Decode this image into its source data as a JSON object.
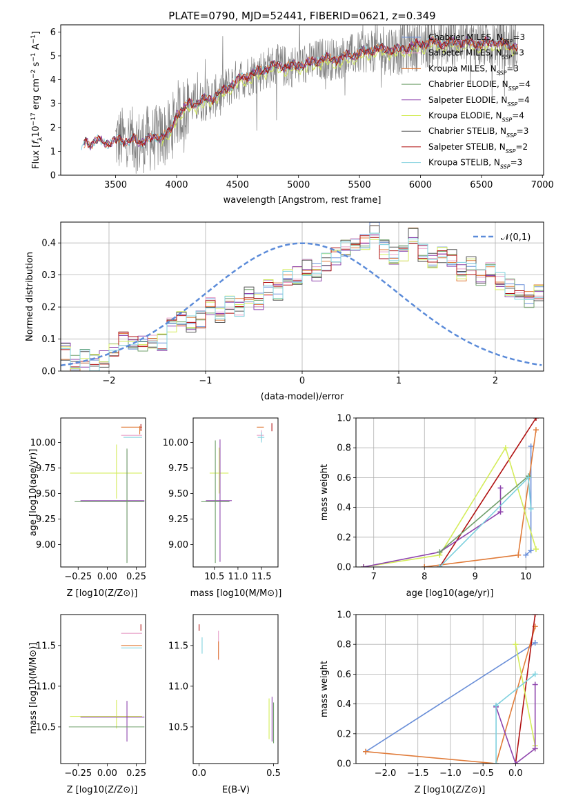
{
  "title": "PLATE=0790, MJD=52441, FIBERID=0621, z=0.349",
  "colors": {
    "chabrier_miles": "#6a8fd8",
    "salpeter_miles": "#e8a0c8",
    "kroupa_miles": "#e07b39",
    "chabrier_elodie": "#6f9f6a",
    "salpeter_elodie": "#8e44ad",
    "kroupa_elodie": "#d4ec5a",
    "chabrier_stelib": "#555555",
    "salpeter_stelib": "#b01010",
    "kroupa_stelib": "#7fd1de",
    "data": "#808080",
    "gaussian": "#5b8bd9"
  },
  "chart_data": [
    {
      "id": "spectrum",
      "type": "line",
      "title": "PLATE=0790, MJD=52441, FIBERID=0621, z=0.349",
      "xlabel": "wavelength [Angstrom, rest frame]",
      "ylabel": "Flux [f_λ10^-17 erg cm^-2 s^-1 A^-1]",
      "xlim": [
        3050,
        7010
      ],
      "ylim": [
        0,
        6.3
      ],
      "xticks": [
        3500,
        4000,
        4500,
        5000,
        5500,
        6000,
        6500,
        7000
      ],
      "yticks": [
        0,
        1,
        2,
        3,
        4,
        5,
        6
      ],
      "legend_position": "upper right",
      "legend": [
        {
          "label": "Chabrier MILES, N",
          "sub": "SSP",
          "tail": "=3",
          "color_key": "chabrier_miles"
        },
        {
          "label": "Salpeter MILES, N",
          "sub": "SSP",
          "tail": "=3",
          "color_key": "salpeter_miles"
        },
        {
          "label": "Kroupa MILES, N",
          "sub": "SSP",
          "tail": "=3",
          "color_key": "kroupa_miles"
        },
        {
          "label": "Chabrier ELODIE, N",
          "sub": "SSP",
          "tail": "=4",
          "color_key": "chabrier_elodie"
        },
        {
          "label": "Salpeter ELODIE, N",
          "sub": "SSP",
          "tail": "=4",
          "color_key": "salpeter_elodie"
        },
        {
          "label": "Kroupa ELODIE, N",
          "sub": "SSP",
          "tail": "=4",
          "color_key": "kroupa_elodie"
        },
        {
          "label": "Chabrier STELIB, N",
          "sub": "SSP",
          "tail": "=3",
          "color_key": "chabrier_stelib"
        },
        {
          "label": "Salpeter STELIB, N",
          "sub": "SSP",
          "tail": "=2",
          "color_key": "salpeter_stelib"
        },
        {
          "label": "Kroupa STELIB, N",
          "sub": "SSP",
          "tail": "=3",
          "color_key": "kroupa_stelib"
        }
      ],
      "model_continuum": {
        "x": [
          3220,
          3260,
          3300,
          3350,
          3400,
          3450,
          3500,
          3550,
          3600,
          3650,
          3700,
          3750,
          3800,
          3850,
          3900,
          3950,
          4000,
          4050,
          4100,
          4150,
          4200,
          4300,
          4400,
          4500,
          4600,
          4700,
          4800,
          4900,
          5000,
          5100,
          5200,
          5300,
          5400,
          5500,
          5600,
          5700,
          5800,
          5900,
          6000,
          6100,
          6200,
          6300,
          6400,
          6500,
          6600,
          6700,
          6800
        ],
        "y": [
          1.0,
          1.5,
          1.3,
          1.45,
          1.4,
          1.35,
          1.45,
          1.5,
          1.4,
          1.5,
          1.35,
          1.55,
          1.5,
          1.6,
          1.7,
          1.8,
          2.6,
          2.7,
          3.0,
          3.0,
          3.1,
          3.25,
          3.6,
          4.0,
          4.2,
          4.4,
          4.6,
          4.55,
          4.6,
          4.7,
          4.9,
          4.85,
          5.0,
          5.1,
          5.25,
          5.3,
          5.25,
          5.35,
          5.5,
          5.6,
          5.5,
          5.6,
          5.55,
          5.5,
          5.6,
          5.5,
          5.4
        ]
      },
      "data_x_range": [
        3500,
        6800
      ]
    },
    {
      "id": "residuals",
      "type": "histogram",
      "xlabel": "(data-model)/error",
      "ylabel": "Normed distribution",
      "xlim": [
        -2.5,
        2.5
      ],
      "ylim": [
        0,
        0.465
      ],
      "xticks": [
        -2,
        -1,
        0,
        1,
        2
      ],
      "xticklabels": [
        "−2",
        "−1",
        "0",
        "1",
        "2"
      ],
      "yticks": [
        0,
        0.1,
        0.2,
        0.3,
        0.4
      ],
      "yticklabels": [
        "0.0",
        "0.1",
        "0.2",
        "0.3",
        "0.4"
      ],
      "legend": [
        {
          "label": "𝒩(0,1)",
          "color_key": "gaussian",
          "style": "dashed"
        }
      ],
      "legend_position": "upper right",
      "bin_width": 0.1,
      "bins_start": -2.5,
      "series_values": [
        [
          0.06,
          0.03,
          0.04,
          0.03,
          0.04,
          0.06,
          0.1,
          0.08,
          0.08,
          0.1,
          0.09,
          0.14,
          0.16,
          0.15,
          0.16,
          0.2,
          0.18,
          0.21,
          0.2,
          0.24,
          0.22,
          0.26,
          0.25,
          0.29,
          0.3,
          0.32,
          0.31,
          0.34,
          0.36,
          0.38,
          0.39,
          0.4,
          0.44,
          0.38,
          0.36,
          0.37,
          0.42,
          0.37,
          0.34,
          0.36,
          0.35,
          0.31,
          0.33,
          0.29,
          0.31,
          0.28,
          0.26,
          0.25,
          0.22,
          0.24
        ]
      ]
    },
    {
      "id": "age_vs_Z",
      "type": "scatter",
      "xlabel": "Z [log10(Z/Z⊙)]",
      "ylabel": "age  [log10(age/yr)]",
      "xlim": [
        -0.4,
        0.33
      ],
      "ylim": [
        8.78,
        10.24
      ],
      "xticks": [
        -0.25,
        0.0,
        0.25
      ],
      "xticklabels": [
        "−0.25",
        "0.00",
        "0.25"
      ],
      "yticks": [
        9.0,
        9.25,
        9.5,
        9.75,
        10.0
      ],
      "yticklabels": [
        "9.00",
        "9.25",
        "9.50",
        "9.75",
        "10.00"
      ]
    },
    {
      "id": "age_vs_mass",
      "type": "scatter",
      "xlabel": "mass [log10(M/M⊙)]",
      "ylabel": "",
      "xlim": [
        10.05,
        11.85
      ],
      "ylim": [
        8.78,
        10.24
      ],
      "xticks": [
        10.5,
        11.0,
        11.5
      ],
      "xticklabels": [
        "10.5",
        "11.0",
        "11.5"
      ],
      "yticks": [
        9.0,
        9.25,
        9.5,
        9.75,
        10.0
      ],
      "yticklabels": [
        "9.00",
        "9.25",
        "9.50",
        "9.75",
        "10.00"
      ]
    },
    {
      "id": "massweight_vs_age",
      "type": "line",
      "xlabel": "age  [log10(age/yr)]",
      "ylabel": "mass weight",
      "xlim": [
        6.65,
        10.35
      ],
      "ylim": [
        0,
        1.0
      ],
      "xticks": [
        7,
        8,
        9,
        10
      ],
      "yticks": [
        0,
        0.2,
        0.4,
        0.6,
        0.8,
        1.0
      ],
      "yticklabels": [
        "0.0",
        "0.2",
        "0.4",
        "0.6",
        "0.8",
        "1.0"
      ],
      "series": [
        {
          "color_key": "chabrier_miles",
          "x": [
            10.0,
            10.1,
            10.1
          ],
          "y": [
            0.08,
            0.11,
            0.81
          ]
        },
        {
          "color_key": "kroupa_miles",
          "x": [
            8.0,
            9.85,
            10.2
          ],
          "y": [
            0.0,
            0.08,
            0.92
          ]
        },
        {
          "color_key": "salpeter_stelib",
          "x": [
            8.3,
            10.2
          ],
          "y": [
            0.0,
            1.0
          ]
        },
        {
          "color_key": "kroupa_elodie",
          "x": [
            6.8,
            8.3,
            9.6,
            10.2
          ],
          "y": [
            0.0,
            0.08,
            0.8,
            0.12
          ]
        },
        {
          "color_key": "salpeter_elodie",
          "x": [
            6.8,
            8.3,
            9.5,
            9.5
          ],
          "y": [
            0.0,
            0.1,
            0.37,
            0.53
          ]
        },
        {
          "color_key": "chabrier_elodie",
          "x": [
            8.3,
            10.05
          ],
          "y": [
            0.1,
            0.61
          ]
        },
        {
          "color_key": "kroupa_stelib",
          "x": [
            8.3,
            10.05,
            10.1
          ],
          "y": [
            0.0,
            0.6,
            0.39
          ]
        }
      ]
    },
    {
      "id": "mass_vs_Z",
      "type": "scatter",
      "xlabel": "Z [log10(Z/Z⊙)]",
      "ylabel": "mass [log10(M/M⊙)]",
      "xlim": [
        -0.4,
        0.33
      ],
      "ylim": [
        10.05,
        11.88
      ],
      "xticks": [
        -0.25,
        0.0,
        0.25
      ],
      "xticklabels": [
        "−0.25",
        "0.00",
        "0.25"
      ],
      "yticks": [
        10.5,
        11.0,
        11.5
      ],
      "yticklabels": [
        "10.5",
        "11.0",
        "11.5"
      ]
    },
    {
      "id": "mass_vs_ebv",
      "type": "scatter",
      "xlabel": "E(B-V)",
      "ylabel": "",
      "xlim": [
        -0.04,
        0.53
      ],
      "ylim": [
        10.05,
        11.88
      ],
      "xticks": [
        0.0,
        0.5
      ],
      "xticklabels": [
        "0.0",
        "0.5"
      ],
      "yticks": [
        10.5,
        11.0,
        11.5
      ],
      "yticklabels": [
        "10.5",
        "11.0",
        "11.5"
      ]
    },
    {
      "id": "massweight_vs_Z",
      "type": "line",
      "xlabel": "Z [log10(Z/Z⊙)]",
      "ylabel": "mass weight",
      "xlim": [
        -2.45,
        0.43
      ],
      "ylim": [
        0,
        1.0
      ],
      "xticks": [
        -2.0,
        -1.5,
        -1.0,
        -0.5,
        0.0
      ],
      "xticklabels": [
        "−2.0",
        "−1.5",
        "−1.0",
        "−0.5",
        "0.0"
      ],
      "yticks": [
        0,
        0.2,
        0.4,
        0.6,
        0.8,
        1.0
      ],
      "yticklabels": [
        "0.0",
        "0.2",
        "0.4",
        "0.6",
        "0.8",
        "1.0"
      ],
      "series": [
        {
          "color_key": "chabrier_miles",
          "x": [
            -2.3,
            0.3
          ],
          "y": [
            0.08,
            0.81
          ]
        },
        {
          "color_key": "kroupa_miles",
          "x": [
            -2.3,
            -0.3,
            0.3
          ],
          "y": [
            0.08,
            0.0,
            0.92
          ]
        },
        {
          "color_key": "salpeter_stelib",
          "x": [
            0.0,
            0.3
          ],
          "y": [
            0.0,
            1.0
          ]
        },
        {
          "color_key": "kroupa_elodie",
          "x": [
            0.0,
            0.3,
            0.3
          ],
          "y": [
            0.8,
            0.12,
            0.1
          ]
        },
        {
          "color_key": "salpeter_elodie",
          "x": [
            -0.3,
            0.0,
            0.3,
            0.3
          ],
          "y": [
            0.38,
            0.0,
            0.1,
            0.53
          ]
        },
        {
          "color_key": "kroupa_stelib",
          "x": [
            -0.3,
            -0.3,
            0.3
          ],
          "y": [
            0.0,
            0.39,
            0.6
          ]
        }
      ]
    }
  ]
}
